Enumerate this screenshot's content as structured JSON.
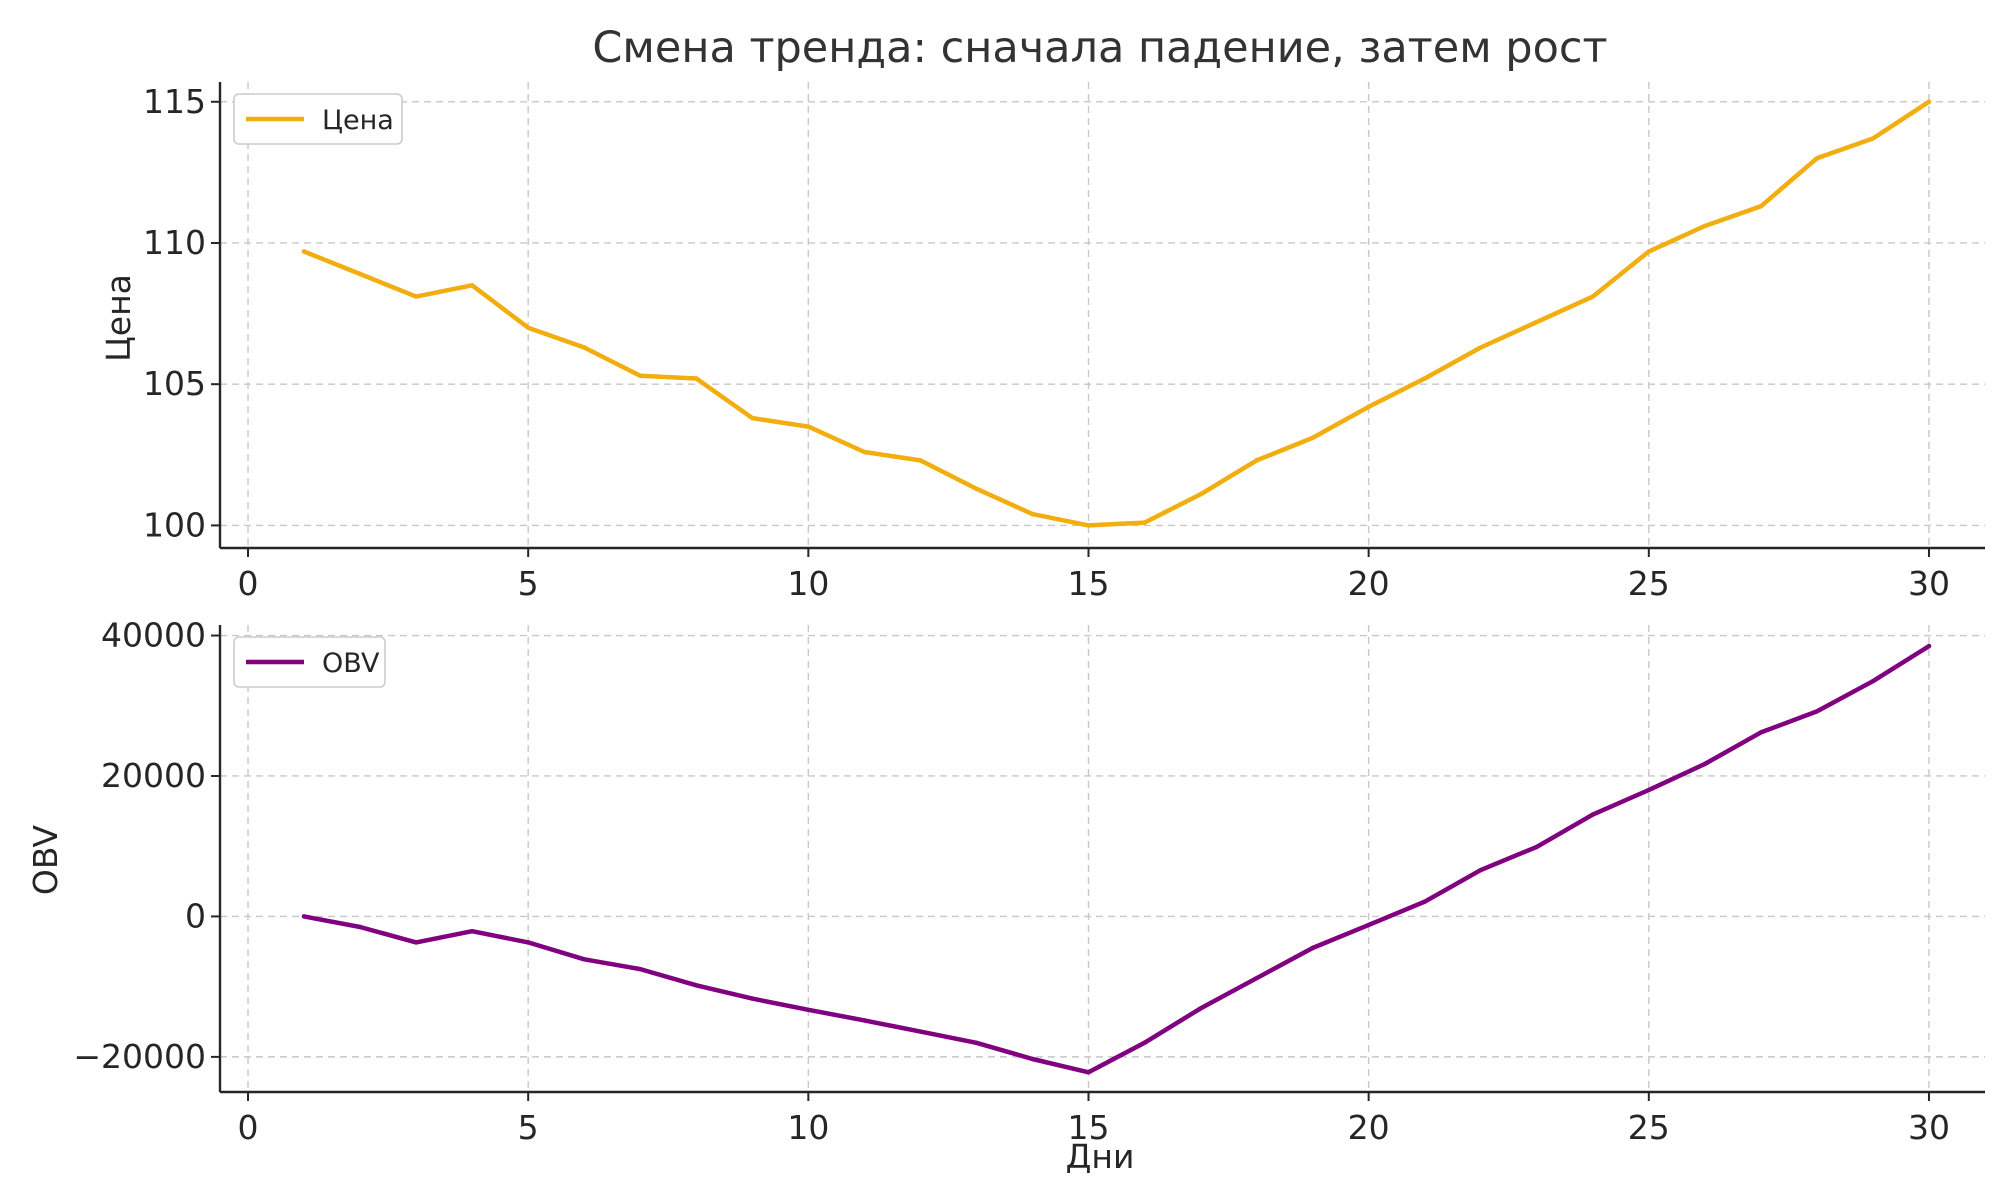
{
  "chart_data": [
    {
      "type": "line",
      "title": "Смена тренда: сначала падение, затем рост",
      "xlabel": "",
      "ylabel": "Цена",
      "xlim": [
        -0.5,
        31
      ],
      "ylim": [
        99.2,
        115.7
      ],
      "xticks": [
        0,
        5,
        10,
        15,
        20,
        25,
        30
      ],
      "xtick_labels": [
        "0",
        "5",
        "10",
        "15",
        "20",
        "25",
        "30"
      ],
      "yticks": [
        100,
        105,
        110,
        115
      ],
      "ytick_labels": [
        "100",
        "105",
        "110",
        "115"
      ],
      "grid": true,
      "legend_position": "top-left",
      "series": [
        {
          "name": "Цена",
          "color": "#f2ad0f",
          "x": [
            1,
            2,
            3,
            4,
            5,
            6,
            7,
            8,
            9,
            10,
            11,
            12,
            13,
            14,
            15,
            16,
            17,
            18,
            19,
            20,
            21,
            22,
            23,
            24,
            25,
            26,
            27,
            28,
            29,
            30
          ],
          "values": [
            109.7,
            108.9,
            108.1,
            108.5,
            107.0,
            106.3,
            105.3,
            105.2,
            103.8,
            103.5,
            102.6,
            102.3,
            101.3,
            100.4,
            100.0,
            100.1,
            101.1,
            102.3,
            103.1,
            104.2,
            105.2,
            106.3,
            107.2,
            108.1,
            109.7,
            110.6,
            111.3,
            113.0,
            113.7,
            115.0
          ]
        }
      ]
    },
    {
      "type": "line",
      "title": "",
      "xlabel": "Дни",
      "ylabel": "OBV",
      "xlim": [
        -0.5,
        31
      ],
      "ylim": [
        -25000,
        41500
      ],
      "xticks": [
        0,
        5,
        10,
        15,
        20,
        25,
        30
      ],
      "xtick_labels": [
        "0",
        "5",
        "10",
        "15",
        "20",
        "25",
        "30"
      ],
      "yticks": [
        -20000,
        0,
        20000,
        40000
      ],
      "ytick_labels": [
        "−20000",
        "0",
        "20000",
        "40000"
      ],
      "grid": true,
      "legend_position": "top-left",
      "series": [
        {
          "name": "OBV",
          "color": "#800080",
          "x": [
            1,
            2,
            3,
            4,
            5,
            6,
            7,
            8,
            9,
            10,
            11,
            12,
            13,
            14,
            15,
            16,
            17,
            18,
            19,
            20,
            21,
            22,
            23,
            24,
            25,
            26,
            27,
            28,
            29,
            30
          ],
          "values": [
            0,
            -1500,
            -3700,
            -2100,
            -3700,
            -6100,
            -7500,
            -9800,
            -11700,
            -13300,
            -14800,
            -16400,
            -18000,
            -20300,
            -22200,
            -18000,
            -13100,
            -8800,
            -4500,
            -1200,
            2100,
            6600,
            9900,
            14500,
            18000,
            21700,
            26200,
            29200,
            33500,
            38500
          ]
        }
      ]
    }
  ]
}
